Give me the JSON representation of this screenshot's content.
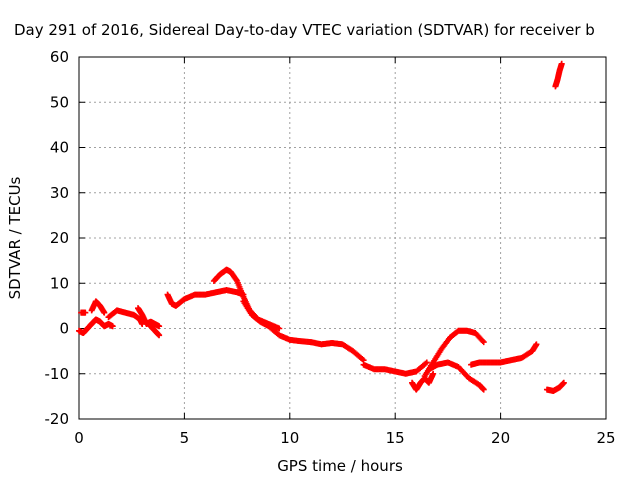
{
  "chart_data": {
    "type": "scatter",
    "title": "Day 291 of 2016, Sidereal Day-to-day VTEC variation (SDTVAR) for receiver b",
    "xlabel": "GPS time / hours",
    "ylabel": "SDTVAR / TECUs",
    "xlim": [
      0,
      25
    ],
    "ylim": [
      -20,
      60
    ],
    "xticks": [
      0,
      5,
      10,
      15,
      20,
      25
    ],
    "yticks": [
      -20,
      -10,
      0,
      10,
      20,
      30,
      40,
      50,
      60
    ],
    "grid": true,
    "marker": "+",
    "color": "#ff0000",
    "series": [
      {
        "name": "seg1",
        "x": [
          0.0,
          0.2,
          0.4,
          0.6,
          0.8,
          1.0,
          1.2,
          1.4,
          1.6
        ],
        "y": [
          -0.5,
          -1.0,
          0.0,
          1.0,
          2.0,
          1.5,
          0.5,
          1.0,
          0.5
        ]
      },
      {
        "name": "seg2",
        "x": [
          0.6,
          0.8,
          1.0,
          1.2
        ],
        "y": [
          4.0,
          6.0,
          5.0,
          3.5
        ]
      },
      {
        "name": "seg3",
        "x": [
          0.1,
          0.3
        ],
        "y": [
          3.5,
          3.5
        ]
      },
      {
        "name": "seg4",
        "x": [
          1.4,
          1.8,
          2.2,
          2.6,
          2.9,
          3.0
        ],
        "y": [
          2.5,
          4.0,
          3.5,
          3.0,
          2.0,
          1.0
        ]
      },
      {
        "name": "seg5",
        "x": [
          2.8,
          3.0,
          3.2,
          3.4,
          3.6,
          3.8
        ],
        "y": [
          4.5,
          3.0,
          1.0,
          1.5,
          1.0,
          0.5
        ]
      },
      {
        "name": "seg6",
        "x": [
          3.4,
          3.6,
          3.8
        ],
        "y": [
          0.5,
          -0.5,
          -1.5
        ]
      },
      {
        "name": "seg7",
        "x": [
          4.2,
          4.4,
          4.6,
          5.0,
          5.5,
          6.0,
          6.5,
          7.0,
          7.5,
          7.8
        ],
        "y": [
          7.5,
          5.5,
          5.0,
          6.5,
          7.5,
          7.5,
          8.0,
          8.5,
          8.0,
          7.5
        ]
      },
      {
        "name": "seg8",
        "x": [
          6.4,
          6.7,
          7.0,
          7.2,
          7.5,
          7.8,
          8.1,
          8.5,
          9.0,
          9.5
        ],
        "y": [
          10.5,
          12.0,
          13.0,
          12.5,
          10.5,
          7.0,
          4.0,
          2.0,
          1.0,
          0.0
        ]
      },
      {
        "name": "seg9",
        "x": [
          7.8,
          8.2,
          8.6,
          9.0,
          9.5,
          10.0,
          10.5,
          11.0
        ],
        "y": [
          6.0,
          3.0,
          1.5,
          0.5,
          -1.5,
          -2.5,
          -2.8,
          -3.0
        ]
      },
      {
        "name": "seg10",
        "x": [
          11.0,
          11.5,
          12.0,
          12.5,
          13.0,
          13.5
        ],
        "y": [
          -3.0,
          -3.5,
          -3.2,
          -3.5,
          -5.0,
          -7.0
        ]
      },
      {
        "name": "seg11",
        "x": [
          13.5,
          14.0,
          14.5,
          15.0,
          15.5,
          16.0,
          16.5
        ],
        "y": [
          -8.0,
          -9.0,
          -9.0,
          -9.5,
          -10.0,
          -9.5,
          -7.5
        ]
      },
      {
        "name": "seg12",
        "x": [
          15.8,
          16.0,
          16.2,
          16.4,
          16.6,
          16.8
        ],
        "y": [
          -12.0,
          -13.5,
          -12.0,
          -11.0,
          -12.0,
          -10.0
        ]
      },
      {
        "name": "seg13",
        "x": [
          16.4,
          16.8,
          17.2,
          17.6,
          18.0,
          18.4,
          18.8,
          19.2
        ],
        "y": [
          -10.5,
          -7.5,
          -4.5,
          -2.0,
          -0.5,
          -0.5,
          -1.0,
          -3.0
        ]
      },
      {
        "name": "seg14",
        "x": [
          16.6,
          17.0,
          17.5,
          18.0,
          18.5,
          19.0,
          19.2
        ],
        "y": [
          -9.0,
          -8.0,
          -7.5,
          -8.5,
          -11.0,
          -12.5,
          -13.5
        ]
      },
      {
        "name": "seg15",
        "x": [
          18.6,
          19.0,
          19.5,
          20.0,
          20.5,
          21.0,
          21.5,
          21.7
        ],
        "y": [
          -8.0,
          -7.5,
          -7.5,
          -7.5,
          -7.0,
          -6.5,
          -5.0,
          -3.5
        ]
      },
      {
        "name": "seg16",
        "x": [
          22.2,
          22.5,
          22.8,
          23.0
        ],
        "y": [
          -13.5,
          -13.8,
          -13.0,
          -12.0
        ]
      },
      {
        "name": "seg17",
        "x": [
          22.6,
          22.7,
          22.8,
          22.9
        ],
        "y": [
          53.5,
          55.0,
          57.0,
          58.5
        ]
      }
    ]
  }
}
